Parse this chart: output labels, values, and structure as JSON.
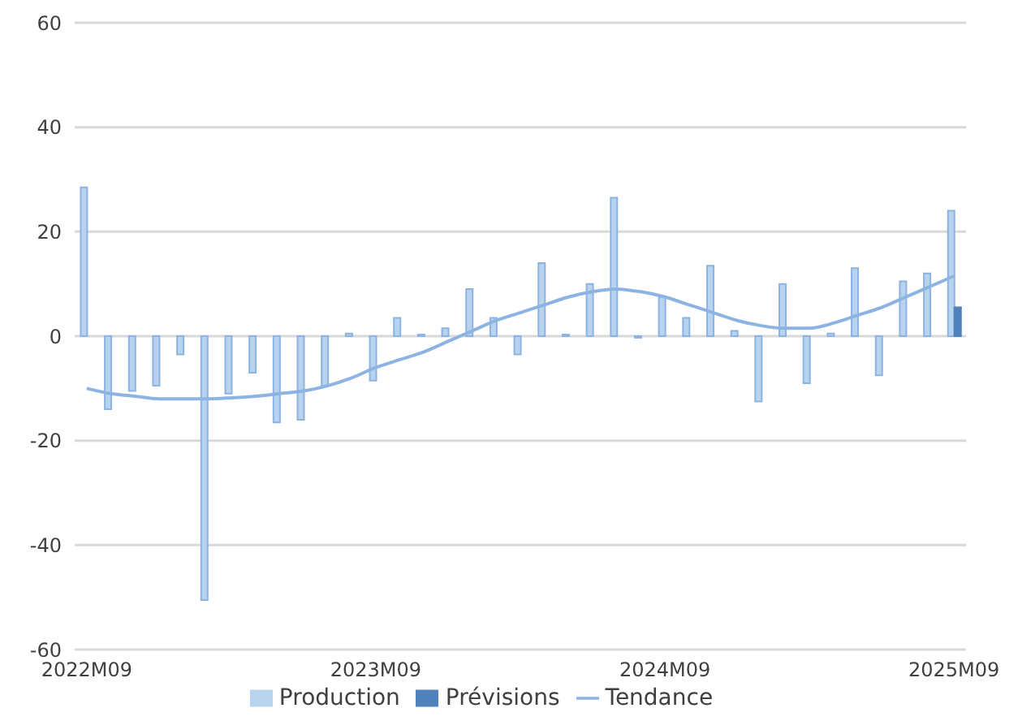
{
  "chart_data": {
    "type": "bar",
    "categories": [
      "2022M09",
      null,
      null,
      null,
      null,
      null,
      null,
      null,
      null,
      null,
      null,
      null,
      "2023M09",
      null,
      null,
      null,
      null,
      null,
      null,
      null,
      null,
      null,
      null,
      null,
      "2024M09",
      null,
      null,
      null,
      null,
      null,
      null,
      null,
      null,
      null,
      null,
      null,
      "2025M09"
    ],
    "series": [
      {
        "name": "Production",
        "color": "#b8d3ee",
        "values": [
          28.5,
          -14,
          -10.5,
          -9.5,
          -3.5,
          -50.5,
          -11,
          -7,
          -16.5,
          -16,
          -9.5,
          0.5,
          -8.5,
          3.5,
          0.3,
          1.5,
          9,
          3.5,
          -3.5,
          14,
          0.3,
          10,
          26.5,
          -0.3,
          7.5,
          3.5,
          13.5,
          1,
          -12.5,
          10,
          -9,
          0.5,
          13,
          -7.5,
          10.5,
          12,
          24
        ]
      },
      {
        "name": "Prévisions",
        "color": "#4f81bd",
        "values": [
          null,
          null,
          null,
          null,
          null,
          null,
          null,
          null,
          null,
          null,
          null,
          null,
          null,
          null,
          null,
          null,
          null,
          null,
          null,
          null,
          null,
          null,
          null,
          null,
          null,
          null,
          null,
          null,
          null,
          null,
          null,
          null,
          null,
          null,
          null,
          null,
          5.5
        ]
      },
      {
        "name": "Tendance",
        "type": "line",
        "color": "#8db3e2",
        "values": [
          -10,
          -11,
          -11.5,
          -12,
          -12,
          -12,
          -11.8,
          -11.5,
          -11,
          -10.5,
          -9.5,
          -8,
          -6,
          -4.5,
          -3,
          -1,
          1,
          3,
          4.5,
          6,
          7.5,
          8.5,
          9,
          8.5,
          7.5,
          6,
          4.5,
          3,
          2,
          1.5,
          1.5,
          2.5,
          4,
          5.5,
          7.5,
          9.5,
          11.5
        ]
      }
    ],
    "ylim": [
      -60,
      60
    ],
    "yticks": [
      -60,
      -40,
      -20,
      0,
      20,
      40,
      60
    ],
    "grid": "y",
    "legend": "bottom",
    "marker": "none",
    "line_style": "solid"
  }
}
